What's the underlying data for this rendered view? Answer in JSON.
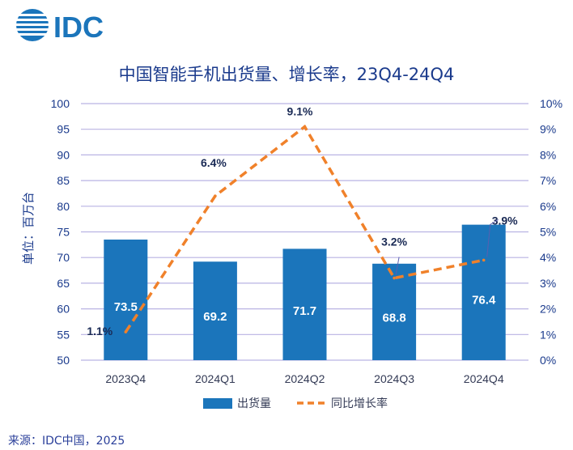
{
  "logo": {
    "text": "IDC",
    "color": "#1b75bb"
  },
  "source": "来源：IDC中国，2025",
  "colors": {
    "bar": "#1b75bb",
    "line": "#f0812a",
    "grid": "#b9b3e3",
    "axis_text": "#1a3a8c",
    "label_text": "#1a2a55"
  },
  "chart_data": {
    "type": "bar",
    "title": "中国智能手机出货量、增长率，23Q4-24Q4",
    "ylabel": "单位：百万台",
    "categories": [
      "2023Q4",
      "2024Q1",
      "2024Q2",
      "2024Q3",
      "2024Q4"
    ],
    "ylim": [
      50,
      100
    ],
    "y_ticks": [
      "50",
      "55",
      "60",
      "65",
      "70",
      "75",
      "80",
      "85",
      "90",
      "95",
      "100"
    ],
    "y2lim": [
      0,
      10
    ],
    "y2_ticks": [
      "0%",
      "1%",
      "2%",
      "3%",
      "4%",
      "5%",
      "6%",
      "7%",
      "8%",
      "9%",
      "10%"
    ],
    "series": [
      {
        "name": "出货量",
        "type": "bar",
        "axis": "left",
        "values": [
          73.5,
          69.2,
          71.7,
          68.8,
          76.4
        ],
        "labels": [
          "73.5",
          "69.2",
          "71.7",
          "68.8",
          "76.4"
        ]
      },
      {
        "name": "同比增长率",
        "type": "line",
        "style": "dashed",
        "axis": "right",
        "values": [
          1.1,
          6.4,
          9.1,
          3.2,
          3.9
        ],
        "labels": [
          "1.1%",
          "6.4%",
          "9.1%",
          "3.2%",
          "3.9%"
        ]
      }
    ],
    "legend": [
      "出货量",
      "同比增长率"
    ],
    "legend_position": "bottom"
  }
}
